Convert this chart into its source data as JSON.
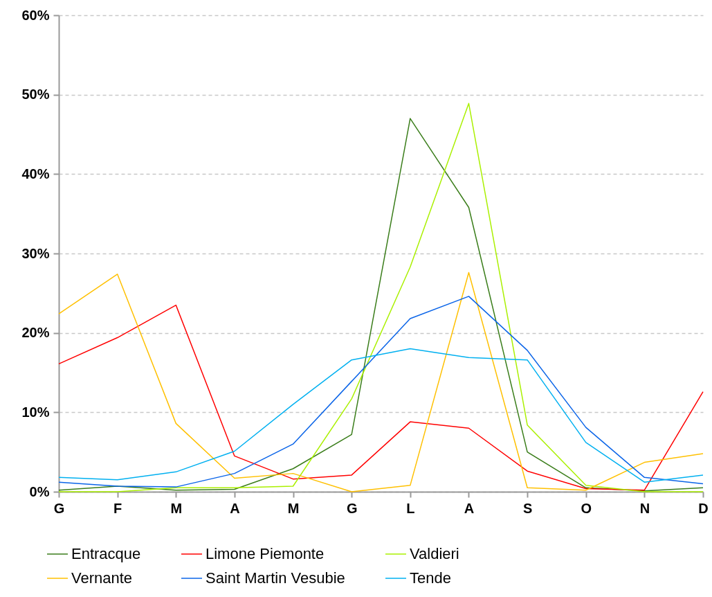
{
  "chart_data": {
    "type": "line",
    "categories": [
      "G",
      "F",
      "M",
      "A",
      "M",
      "G",
      "L",
      "A",
      "S",
      "O",
      "N",
      "D"
    ],
    "ylim": [
      0,
      60
    ],
    "yticks": [
      {
        "value": 0,
        "label": "0%"
      },
      {
        "value": 10,
        "label": "10%"
      },
      {
        "value": 20,
        "label": "20%"
      },
      {
        "value": 30,
        "label": "30%"
      },
      {
        "value": 40,
        "label": "40%"
      },
      {
        "value": 50,
        "label": "50%"
      },
      {
        "value": 60,
        "label": "60%"
      }
    ],
    "grid": "y",
    "legend": "bottom",
    "marker": "none",
    "line_style": "solid",
    "series": [
      {
        "name": "Entracque",
        "color": "#3a7d1a",
        "values": [
          0.2,
          0.7,
          0.2,
          0.3,
          2.9,
          7.2,
          47.0,
          35.8,
          5.0,
          0.5,
          0.1,
          0.5
        ]
      },
      {
        "name": "Limone Piemonte",
        "color": "#ff0000",
        "values": [
          16.1,
          19.4,
          23.5,
          4.5,
          1.6,
          2.1,
          8.8,
          8.0,
          2.6,
          0.4,
          0.2,
          12.6
        ]
      },
      {
        "name": "Valdieri",
        "color": "#aaf000",
        "values": [
          0.0,
          0.0,
          0.5,
          0.5,
          0.7,
          11.7,
          28.3,
          48.9,
          8.4,
          0.8,
          0.0,
          0.0
        ]
      },
      {
        "name": "Vernante",
        "color": "#ffc000",
        "values": [
          22.4,
          27.4,
          8.6,
          1.7,
          2.3,
          0.0,
          0.8,
          27.6,
          0.5,
          0.2,
          3.7,
          4.8
        ]
      },
      {
        "name": "Saint Martin Vesubie",
        "color": "#0a64e8",
        "values": [
          1.2,
          0.7,
          0.6,
          2.3,
          6.0,
          13.9,
          21.8,
          24.6,
          17.8,
          8.1,
          1.8,
          1.0
        ]
      },
      {
        "name": "Tende",
        "color": "#00b0f0",
        "values": [
          1.8,
          1.5,
          2.5,
          5.1,
          11.0,
          16.6,
          18.0,
          16.9,
          16.6,
          6.2,
          1.2,
          2.1
        ]
      }
    ]
  }
}
